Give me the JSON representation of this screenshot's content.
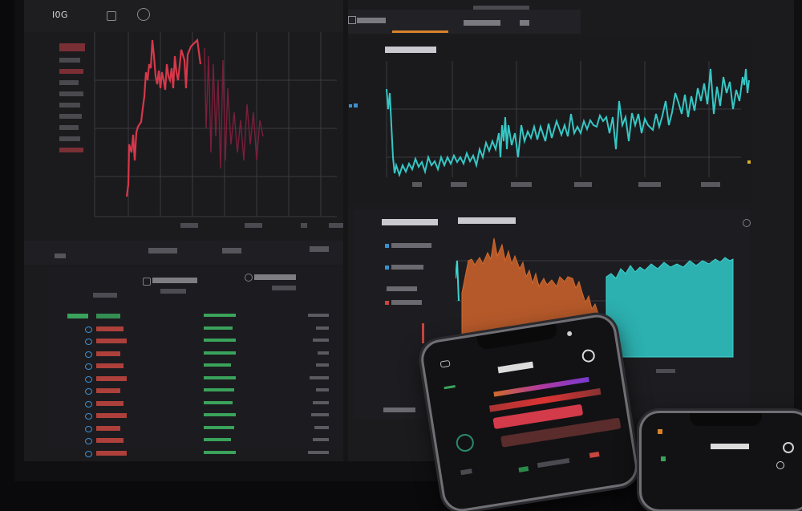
{
  "monitor": {
    "top_left_label": "I0G",
    "left_chart": {
      "y_ticks": [
        "",
        "",
        "",
        "",
        "",
        "",
        "",
        "",
        "",
        "",
        "",
        "",
        "",
        "",
        "",
        ""
      ],
      "x_ticks": [
        "",
        "",
        "",
        ""
      ],
      "tab_label": ""
    },
    "right_chart": {
      "tab_label": "",
      "tab2_label": "",
      "title": "",
      "x_ticks": [
        "",
        "",
        "",
        "",
        "",
        "",
        ""
      ]
    },
    "orderbook": {
      "tab1": "",
      "tab2": "",
      "rows": [
        {
          "name": "",
          "change": "",
          "color": "#3aa35b"
        },
        {
          "name": "",
          "change": "",
          "color": "#c7463f"
        },
        {
          "name": "",
          "change": "",
          "color": "#c7463f"
        },
        {
          "name": "",
          "change": "",
          "color": "#c7463f"
        },
        {
          "name": "",
          "change": "",
          "color": "#c7463f"
        },
        {
          "name": "",
          "change": "",
          "color": "#c7463f"
        },
        {
          "name": "",
          "change": "",
          "color": "#c7463f"
        },
        {
          "name": "",
          "change": "",
          "color": "#c7463f"
        },
        {
          "name": "",
          "change": "",
          "color": "#c7463f"
        },
        {
          "name": "",
          "change": "",
          "color": "#c7463f"
        },
        {
          "name": "",
          "change": "",
          "color": "#c7463f"
        },
        {
          "name": "",
          "change": "",
          "color": "#c7463f"
        }
      ]
    },
    "bottom_right": {
      "title": "",
      "subtitle": "",
      "footer": ""
    },
    "colors": {
      "red": "#c7463f",
      "cyan": "#36c7c4",
      "orange": "#d06a2c",
      "green": "#3aa35b",
      "blue": "#3c8fd0"
    }
  },
  "phone1": {
    "title": "",
    "search_icon": "search-icon"
  },
  "phone2": {
    "title": ""
  }
}
